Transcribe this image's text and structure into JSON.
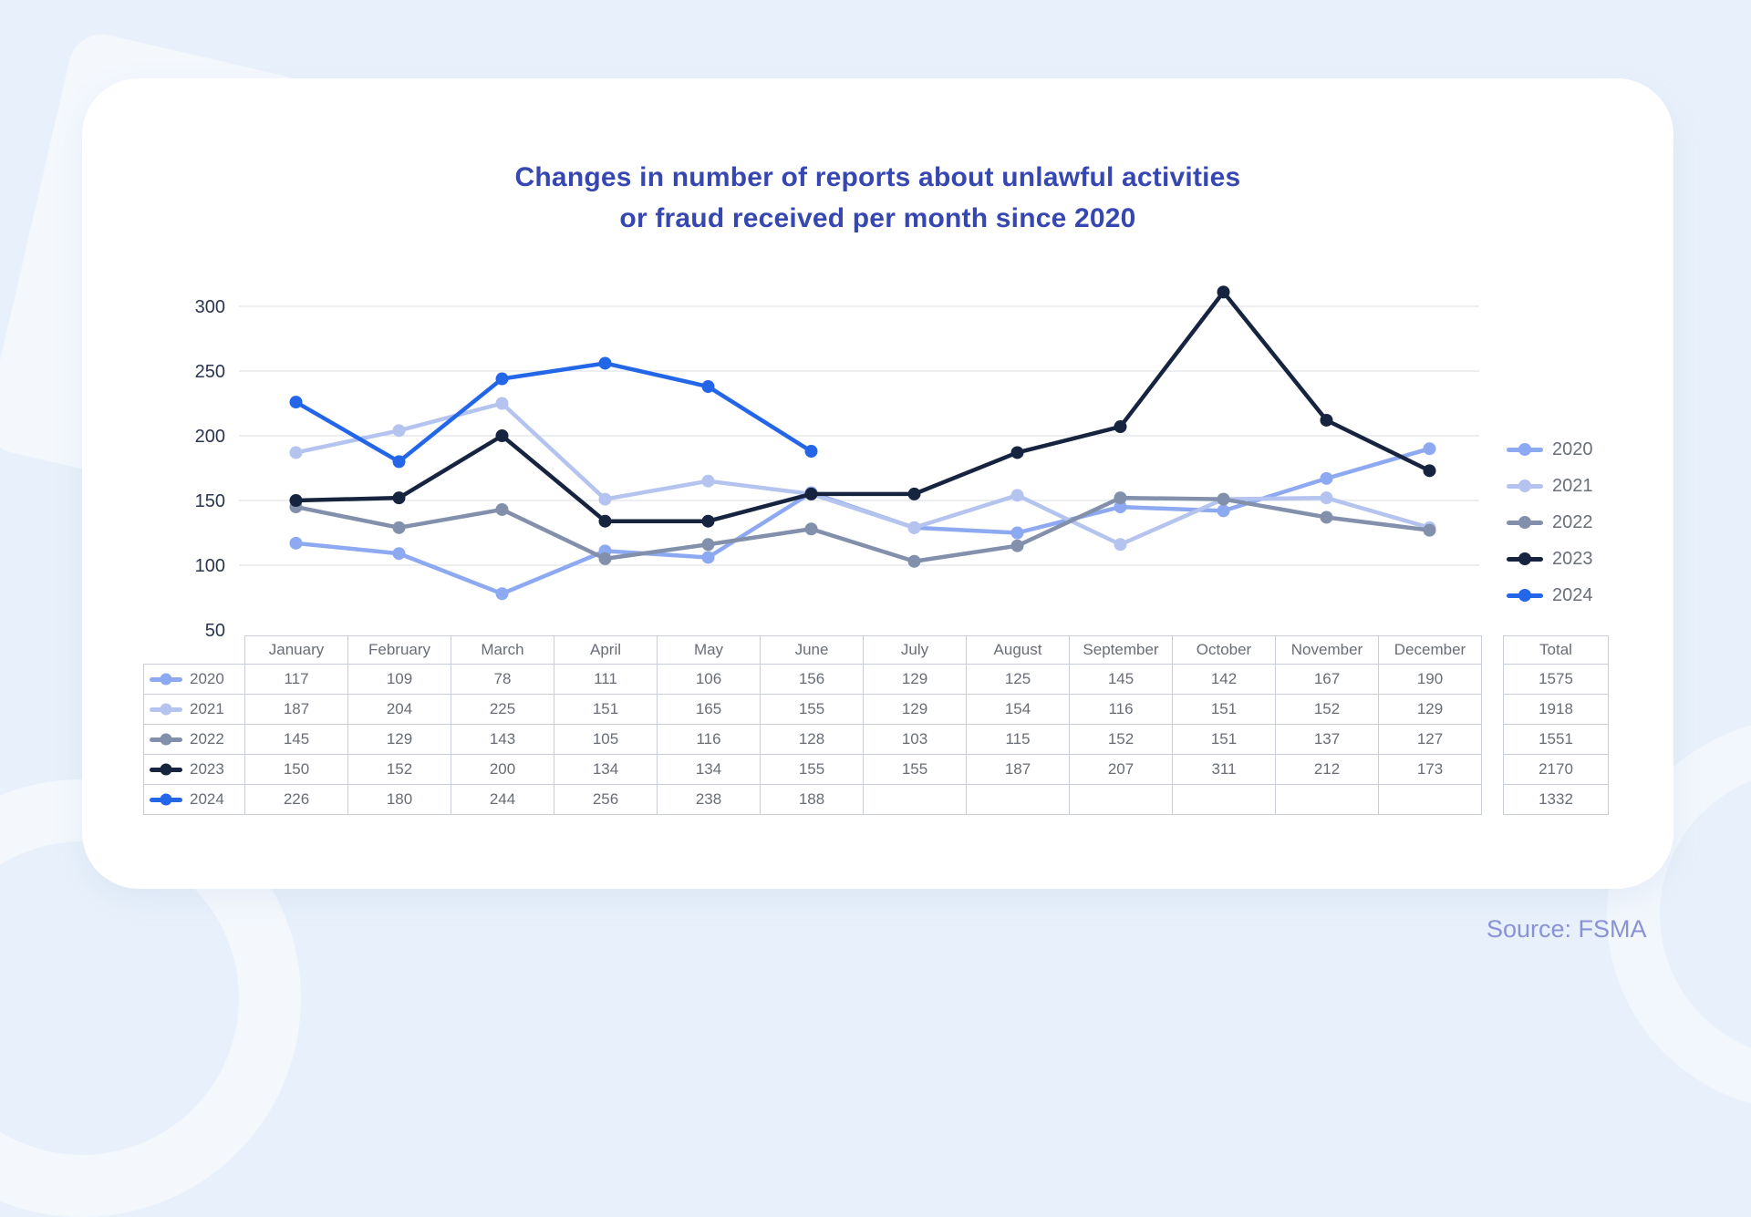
{
  "title": {
    "line1": "Changes in number of reports about unlawful activities",
    "line2": "or fraud received per month since 2020"
  },
  "source": {
    "text": "Source: FSMA"
  },
  "table": {
    "total_header": "Total"
  },
  "colors": {
    "background": "#e8f1fb",
    "card": "#ffffff",
    "title_text": "#3747b2",
    "axis_text": "#2a3550",
    "table_text": "#686d76",
    "table_border": "#c9cdd5",
    "gridline": "#dadde2",
    "source_text": "#8a92d6"
  },
  "chart_data": {
    "type": "line",
    "title": "Changes in number of reports about unlawful activities or fraud received per month since 2020",
    "xlabel": "",
    "ylabel": "",
    "grid": true,
    "legend_position": "right",
    "y_ticks": [
      50,
      100,
      150,
      200,
      250,
      300
    ],
    "ylim": [
      50,
      320
    ],
    "categories": [
      "January",
      "February",
      "March",
      "April",
      "May",
      "June",
      "July",
      "August",
      "September",
      "October",
      "November",
      "December"
    ],
    "series": [
      {
        "name": "2020",
        "color": "#8da9f2",
        "values": [
          117,
          109,
          78,
          111,
          106,
          156,
          129,
          125,
          145,
          142,
          167,
          190
        ],
        "total": 1575
      },
      {
        "name": "2021",
        "color": "#b4c4ee",
        "values": [
          187,
          204,
          225,
          151,
          165,
          155,
          129,
          154,
          116,
          151,
          152,
          129
        ],
        "total": 1918
      },
      {
        "name": "2022",
        "color": "#8290ac",
        "values": [
          145,
          129,
          143,
          105,
          116,
          128,
          103,
          115,
          152,
          151,
          137,
          127
        ],
        "total": 1551
      },
      {
        "name": "2023",
        "color": "#162440",
        "values": [
          150,
          152,
          200,
          134,
          134,
          155,
          155,
          187,
          207,
          311,
          212,
          173
        ],
        "total": 2170
      },
      {
        "name": "2024",
        "color": "#2366e8",
        "values": [
          226,
          180,
          244,
          256,
          238,
          188,
          null,
          null,
          null,
          null,
          null,
          null
        ],
        "total": 1332
      }
    ]
  }
}
